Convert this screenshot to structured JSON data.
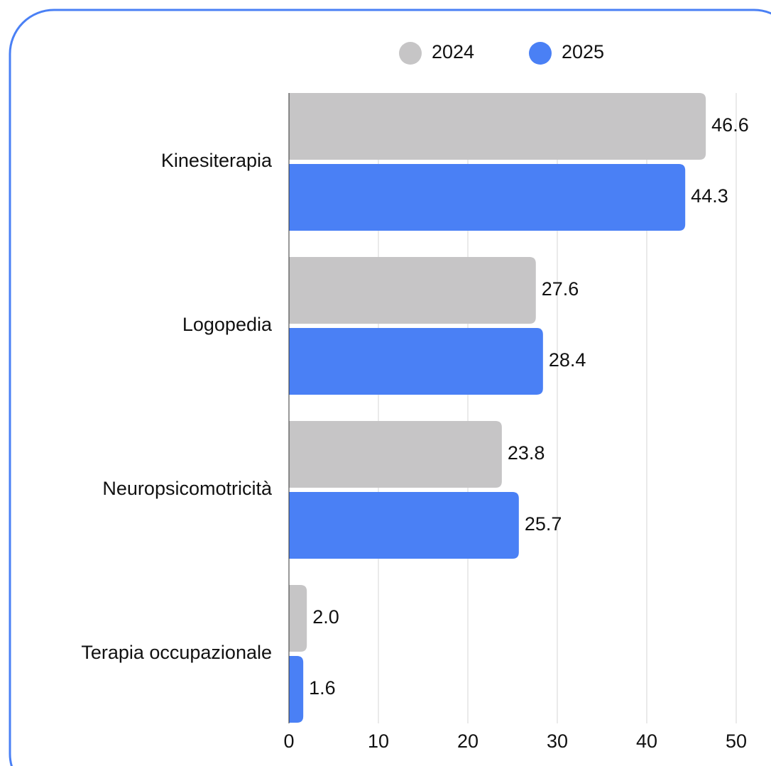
{
  "chart_data": {
    "type": "bar",
    "orientation": "horizontal",
    "categories": [
      "Kinesiterapia",
      "Logopedia",
      "Neuropsicomotricità",
      "Terapia occupazionale"
    ],
    "series": [
      {
        "name": "2024",
        "color": "#c6c5c6",
        "values": [
          46.6,
          27.6,
          23.8,
          2.0
        ],
        "value_labels": [
          "46.6",
          "27.6",
          "23.8",
          "2.0"
        ]
      },
      {
        "name": "2025",
        "color": "#4a80f5",
        "values": [
          44.3,
          28.4,
          25.7,
          1.6
        ],
        "value_labels": [
          "44.3",
          "28.4",
          "25.7",
          "1.6"
        ]
      }
    ],
    "xlim": [
      0,
      50
    ],
    "xticks": [
      0,
      10,
      20,
      30,
      40,
      50
    ],
    "grid": true,
    "legend": "top"
  }
}
